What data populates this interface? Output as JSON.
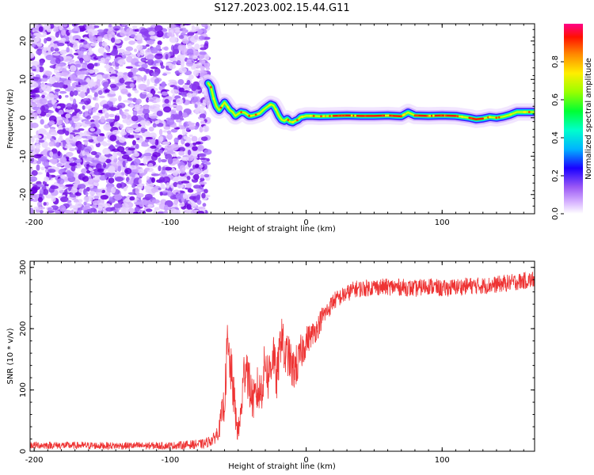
{
  "title": "S127.2023.002.15.44.G11",
  "chart_data": [
    {
      "type": "heatmap",
      "xlabel": "Height of straight line (km)",
      "ylabel": "Frequency (Hz)",
      "xlim": [
        -203,
        168
      ],
      "ylim": [
        -25,
        24.5
      ],
      "x_ticks": [
        -200,
        -100,
        0,
        100
      ],
      "y_ticks": [
        -20,
        -10,
        0,
        10,
        20
      ],
      "description_free": true,
      "noise_region_x": [
        -203,
        -72
      ],
      "carrier_trace": {
        "x": [
          -72,
          -70,
          -68,
          -66,
          -64,
          -62,
          -60,
          -58,
          -56,
          -54,
          -52,
          -50,
          -48,
          -45,
          -42,
          -40,
          -37,
          -34,
          -31,
          -28,
          -26,
          -24,
          -22,
          -20,
          -18,
          -16,
          -14,
          -12,
          -10,
          -8,
          -6,
          -4,
          -2,
          0,
          5,
          10,
          20,
          30,
          40,
          50,
          60,
          70,
          75,
          80,
          90,
          100,
          110,
          120,
          125,
          130,
          135,
          140,
          145,
          150,
          155,
          160,
          165,
          168
        ],
        "y": [
          9,
          8,
          5,
          3,
          2,
          3,
          4,
          3,
          2,
          1.5,
          0.5,
          1,
          1.5,
          1.3,
          0.5,
          0.5,
          0.8,
          1.2,
          2.2,
          3,
          3.5,
          3.2,
          2,
          0.5,
          -0.5,
          -0.8,
          -0.3,
          -1,
          -1.2,
          -0.8,
          -0.5,
          0.2,
          0.3,
          0.5,
          0.5,
          0.4,
          0.5,
          0.6,
          0.5,
          0.5,
          0.6,
          0.4,
          1.4,
          0.6,
          0.5,
          0.6,
          0.5,
          0,
          -0.4,
          -0.2,
          0.2,
          0,
          0.3,
          0.8,
          1.5,
          1.5,
          1.5,
          1.5
        ]
      },
      "red_segments_x": [
        [
          20,
          70
        ],
        [
          78,
          112
        ],
        [
          120,
          132
        ]
      ],
      "colorbar": {
        "label": "Normalized spectral amplitude",
        "ticks": [
          0.0,
          0.2,
          0.4,
          0.6,
          0.8
        ],
        "range": [
          0,
          1
        ],
        "colors": [
          "#ffffff",
          "#9b59f5",
          "#1a00ff",
          "#00b3ff",
          "#00ff66",
          "#66ff00",
          "#ffff00",
          "#ff8800",
          "#ff0000",
          "#ff0088"
        ]
      }
    },
    {
      "type": "line",
      "xlabel": "Height of straight line (km)",
      "ylabel": "SNR (10 * v/v)",
      "xlim": [
        -203,
        168
      ],
      "ylim": [
        0,
        310
      ],
      "x_ticks": [
        -200,
        -100,
        0,
        100
      ],
      "y_ticks": [
        0,
        100,
        200,
        300
      ],
      "color": "#ee3333",
      "series": [
        {
          "x": [
            -203,
            -150,
            -100,
            -75,
            -68,
            -64,
            -62,
            -60,
            -58,
            -56,
            -54,
            -52,
            -50,
            -48,
            -46,
            -44,
            -42,
            -40,
            -38,
            -36,
            -34,
            -32,
            -30,
            -28,
            -26,
            -24,
            -22,
            -20,
            -18,
            -16,
            -14,
            -12,
            -10,
            -8,
            -6,
            -4,
            -2,
            0,
            4,
            8,
            12,
            16,
            20,
            24,
            28,
            32,
            36,
            40,
            50,
            60,
            70,
            80,
            90,
            100,
            110,
            120,
            130,
            140,
            150,
            160,
            168
          ],
          "y": [
            10,
            9,
            9,
            12,
            20,
            35,
            60,
            80,
            170,
            140,
            110,
            60,
            30,
            60,
            120,
            150,
            110,
            90,
            80,
            100,
            95,
            110,
            150,
            120,
            140,
            165,
            110,
            150,
            200,
            150,
            160,
            150,
            130,
            140,
            140,
            160,
            170,
            180,
            190,
            200,
            220,
            230,
            245,
            250,
            255,
            260,
            265,
            265,
            268,
            268,
            268,
            265,
            270,
            265,
            268,
            270,
            270,
            272,
            275,
            278,
            280
          ],
          "noise_amp": [
            6,
            6,
            6,
            8,
            10,
            15,
            25,
            30,
            45,
            40,
            40,
            30,
            20,
            30,
            40,
            45,
            40,
            35,
            35,
            40,
            35,
            40,
            40,
            40,
            40,
            40,
            35,
            35,
            40,
            35,
            35,
            35,
            35,
            35,
            35,
            30,
            30,
            25,
            20,
            20,
            18,
            15,
            15,
            14,
            14,
            14,
            14,
            14,
            14,
            14,
            14,
            14,
            14,
            14,
            14,
            14,
            14,
            14,
            14,
            14,
            14
          ]
        }
      ]
    }
  ]
}
